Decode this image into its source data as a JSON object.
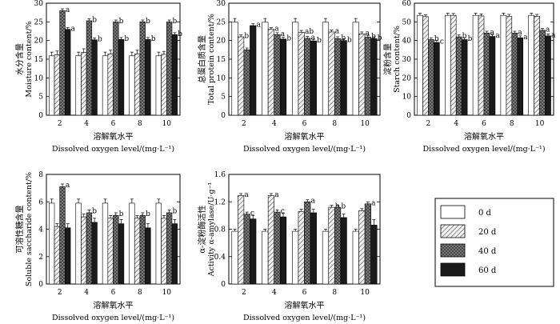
{
  "legend": {
    "entries": [
      {
        "label": "0 d",
        "pattern": "white"
      },
      {
        "label": "20 d",
        "pattern": "diag"
      },
      {
        "label": "40 d",
        "pattern": "cross"
      },
      {
        "label": "60 d",
        "pattern": "black"
      }
    ]
  },
  "chart_data": [
    {
      "type": "bar",
      "ylabel_cn": "水分含量",
      "ylabel_en": "Moisture content/%",
      "xlabel_cn": "溶解氧水平",
      "xlabel_en": "Dissolved oxygen level/(mg·L⁻¹)",
      "categories": [
        "2",
        "4",
        "6",
        "8",
        "10"
      ],
      "ylim": [
        0,
        30
      ],
      "yticks": [
        0,
        5,
        10,
        15,
        20,
        25,
        30
      ],
      "series": [
        {
          "name": "0 d",
          "values": [
            15.9,
            15.9,
            15.9,
            15.9,
            15.9
          ],
          "errors": [
            1.0,
            1.0,
            1.0,
            1.0,
            1.0
          ],
          "labels": [
            "",
            "",
            "",
            "",
            ""
          ]
        },
        {
          "name": "20 d",
          "values": [
            16.2,
            16.8,
            16.4,
            16.4,
            16.3
          ],
          "errors": [
            1.0,
            1.0,
            1.0,
            1.0,
            0.8
          ],
          "labels": [
            "",
            "",
            "",
            "",
            ""
          ]
        },
        {
          "name": "40 d",
          "values": [
            28.0,
            25.3,
            25.0,
            25.0,
            25.0
          ],
          "errors": [
            0.5,
            0.5,
            0.5,
            0.5,
            0.5
          ],
          "labels": [
            "a",
            "b",
            "b",
            "b",
            "b"
          ]
        },
        {
          "name": "60 d",
          "values": [
            23.0,
            20.2,
            20.3,
            20.3,
            21.6
          ],
          "errors": [
            0.5,
            0.5,
            0.5,
            0.5,
            0.5
          ],
          "labels": [
            "a",
            "b",
            "b",
            "b",
            "b"
          ]
        }
      ]
    },
    {
      "type": "bar",
      "ylabel_cn": "总蛋白质含量",
      "ylabel_en": "Total protein content/%",
      "xlabel_cn": "溶解氧水平",
      "xlabel_en": "Dissolved oxygen level/(mg·L⁻¹)",
      "categories": [
        "2",
        "4",
        "6",
        "8",
        "10"
      ],
      "ylim": [
        0,
        30
      ],
      "yticks": [
        0,
        5,
        10,
        15,
        20,
        25,
        30
      ],
      "series": [
        {
          "name": "0 d",
          "values": [
            24.9,
            24.9,
            24.9,
            24.9,
            24.9
          ],
          "errors": [
            1.0,
            1.0,
            1.0,
            1.0,
            1.0
          ],
          "labels": [
            "",
            "",
            "",
            "",
            ""
          ]
        },
        {
          "name": "20 d",
          "values": [
            21.0,
            23.0,
            22.2,
            22.3,
            21.8
          ],
          "errors": [
            0.5,
            0.5,
            0.5,
            0.5,
            0.5
          ],
          "labels": [
            "b",
            "a",
            "ab",
            "a",
            "a"
          ]
        },
        {
          "name": "40 d",
          "values": [
            17.5,
            21.6,
            20.6,
            20.5,
            20.9
          ],
          "errors": [
            0.5,
            0.5,
            0.5,
            0.5,
            0.5
          ],
          "labels": [
            "c",
            "a",
            "a",
            "b",
            "b"
          ]
        },
        {
          "name": "60 d",
          "values": [
            24.0,
            20.4,
            19.9,
            20.0,
            20.5
          ],
          "errors": [
            0.5,
            0.5,
            0.5,
            0.5,
            0.5
          ],
          "labels": [
            "a",
            "b",
            "b",
            "b",
            "b"
          ]
        }
      ]
    },
    {
      "type": "bar",
      "ylabel_cn": "淀粉含量",
      "ylabel_en": "Starch content/%",
      "xlabel_cn": "溶解氧水平",
      "xlabel_en": "Dissolved oxygen level/(mg·L⁻¹)",
      "categories": [
        "2",
        "4",
        "6",
        "8",
        "10"
      ],
      "ylim": [
        0,
        60
      ],
      "yticks": [
        0,
        10,
        20,
        30,
        40,
        50,
        60
      ],
      "series": [
        {
          "name": "0 d",
          "values": [
            53.5,
            53.5,
            53.5,
            53.5,
            53.5
          ],
          "errors": [
            1.2,
            1.2,
            1.2,
            1.2,
            1.2
          ],
          "labels": [
            "",
            "",
            "",
            "",
            ""
          ]
        },
        {
          "name": "20 d",
          "values": [
            52.8,
            53.5,
            53.2,
            53.0,
            53.0
          ],
          "errors": [
            1.0,
            1.0,
            1.0,
            1.0,
            1.0
          ],
          "labels": [
            "",
            "",
            "",
            "",
            ""
          ]
        },
        {
          "name": "40 d",
          "values": [
            40.5,
            42.0,
            44.0,
            44.0,
            45.5
          ],
          "errors": [
            1.0,
            1.0,
            1.0,
            1.0,
            1.0
          ],
          "labels": [
            "b",
            "b",
            "a",
            "a",
            "a"
          ]
        },
        {
          "name": "60 d",
          "values": [
            39.0,
            40.5,
            42.2,
            41.5,
            42.5
          ],
          "errors": [
            1.0,
            1.0,
            1.0,
            1.0,
            1.0
          ],
          "labels": [
            "c",
            "b",
            "a",
            "a",
            "a"
          ]
        }
      ]
    },
    {
      "type": "bar",
      "ylabel_cn": "可溶性糖含量",
      "ylabel_en": "Soluble saccharide content/%",
      "xlabel_cn": "溶解氧水平",
      "xlabel_en": "Dissolved oxygen level/(mg·L⁻¹)",
      "categories": [
        "2",
        "4",
        "6",
        "8",
        "10"
      ],
      "ylim": [
        0,
        8
      ],
      "yticks": [
        0,
        2,
        4,
        6,
        8
      ],
      "series": [
        {
          "name": "0 d",
          "values": [
            5.9,
            5.9,
            5.9,
            5.9,
            5.9
          ],
          "errors": [
            0.3,
            0.3,
            0.3,
            0.3,
            0.3
          ],
          "labels": [
            "",
            "",
            "",
            "",
            ""
          ]
        },
        {
          "name": "20 d",
          "values": [
            4.2,
            4.9,
            4.8,
            4.8,
            4.8
          ],
          "errors": [
            0.2,
            0.2,
            0.2,
            0.2,
            0.2
          ],
          "labels": [
            "b",
            "a",
            "a",
            "a",
            "a"
          ]
        },
        {
          "name": "40 d",
          "values": [
            7.1,
            5.2,
            5.0,
            5.0,
            5.2
          ],
          "errors": [
            0.2,
            0.2,
            0.2,
            0.2,
            0.2
          ],
          "labels": [
            "a",
            "b",
            "b",
            "b",
            "b"
          ]
        },
        {
          "name": "60 d",
          "values": [
            4.1,
            4.5,
            4.4,
            4.1,
            4.4
          ],
          "errors": [
            0.3,
            0.3,
            0.3,
            0.3,
            0.3
          ],
          "labels": [
            "",
            "",
            "",
            "",
            ""
          ]
        }
      ]
    },
    {
      "type": "bar",
      "ylabel_cn": "α-淀粉酶活性",
      "ylabel_en": "Activity α-amylase/U·g⁻¹",
      "xlabel_cn": "溶解氧水平",
      "xlabel_en": "Dissolved oxygen level/(mg·L⁻¹)",
      "categories": [
        "2",
        "4",
        "6",
        "8",
        "10"
      ],
      "ylim": [
        0,
        1.6
      ],
      "yticks": [
        0,
        0.4,
        0.8,
        1.2,
        1.6
      ],
      "series": [
        {
          "name": "0 d",
          "values": [
            0.77,
            0.77,
            0.77,
            0.77,
            0.77
          ],
          "errors": [
            0.03,
            0.03,
            0.03,
            0.03,
            0.03
          ],
          "labels": [
            "",
            "",
            "",
            "",
            ""
          ]
        },
        {
          "name": "20 d",
          "values": [
            1.29,
            1.29,
            1.06,
            1.12,
            1.07
          ],
          "errors": [
            0.03,
            0.03,
            0.03,
            0.03,
            0.03
          ],
          "labels": [
            "a",
            "a",
            "c",
            "b",
            "c"
          ]
        },
        {
          "name": "40 d",
          "values": [
            1.02,
            1.05,
            1.2,
            1.12,
            1.17
          ],
          "errors": [
            0.03,
            0.03,
            0.03,
            0.03,
            0.03
          ],
          "labels": [
            "c",
            "c",
            "a",
            "b",
            "a"
          ]
        },
        {
          "name": "60 d",
          "values": [
            0.95,
            0.98,
            1.04,
            0.97,
            0.86
          ],
          "errors": [
            0.05,
            0.05,
            0.05,
            0.05,
            0.08
          ],
          "labels": [
            "",
            "",
            "",
            "",
            ""
          ]
        }
      ]
    }
  ]
}
